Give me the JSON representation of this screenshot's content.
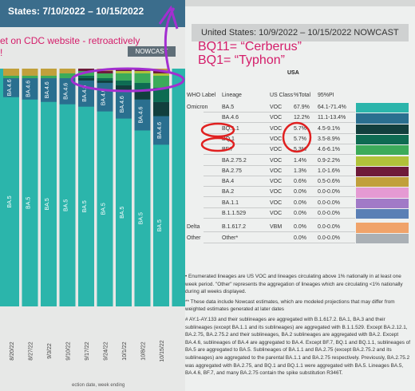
{
  "left": {
    "title": "States: 7/10/2022 – 10/15/2022",
    "note_line1": "et on CDC website - retroactively",
    "note_line2": "!",
    "nowcast_badge": "NOWCAST",
    "bottom_caption": "ection date, week ending"
  },
  "right": {
    "title": "United States: 10/9/2022 – 10/15/2022 NOWCAST",
    "usa": "USA",
    "headers": {
      "who": "WHO Label",
      "lineage": "Lineage",
      "usclass": "US Class",
      "total": "%Total",
      "pi": "95%PI"
    }
  },
  "annotations": {
    "cerberus": "BQ11= “Cerberus”",
    "typhon": "BQ1= “Typhon”"
  },
  "table": [
    {
      "who": "Omicron",
      "lineage": "BA.5",
      "class": "VOC",
      "total": "67.9%",
      "pi": "64.1-71.4%",
      "color": "#2bb5ab"
    },
    {
      "who": "",
      "lineage": "BA.4.6",
      "class": "VOC",
      "total": "12.2%",
      "pi": "11.1-13.4%",
      "color": "#2a6f8f"
    },
    {
      "who": "",
      "lineage": "BQ.1.1",
      "class": "VOC",
      "total": "5.7%",
      "pi": "4.5-9.1%",
      "color": "#123f3d"
    },
    {
      "who": "",
      "lineage": "BQ.1",
      "class": "VOC",
      "total": "5.7%",
      "pi": "3.5-8.9%",
      "color": "#0e6b52"
    },
    {
      "who": "",
      "lineage": "BF.7",
      "class": "VOC",
      "total": "5.3%",
      "pi": "4.6-6.1%",
      "color": "#3cab5a"
    },
    {
      "who": "",
      "lineage": "BA.2.75.2",
      "class": "VOC",
      "total": "1.4%",
      "pi": "0.9-2.2%",
      "color": "#b0c23a"
    },
    {
      "who": "",
      "lineage": "BA.2.75",
      "class": "VOC",
      "total": "1.3%",
      "pi": "1.0-1.6%",
      "color": "#6e1b3a"
    },
    {
      "who": "",
      "lineage": "BA.4",
      "class": "VOC",
      "total": "0.6%",
      "pi": "0.5-0.6%",
      "color": "#c1a03c"
    },
    {
      "who": "",
      "lineage": "BA.2",
      "class": "VOC",
      "total": "0.0%",
      "pi": "0.0-0.0%",
      "color": "#e59ad3"
    },
    {
      "who": "",
      "lineage": "BA.1.1",
      "class": "VOC",
      "total": "0.0%",
      "pi": "0.0-0.0%",
      "color": "#a17ac7"
    },
    {
      "who": "",
      "lineage": "B.1.1.529",
      "class": "VOC",
      "total": "0.0%",
      "pi": "0.0-0.0%",
      "color": "#5a7fb5"
    },
    {
      "who": "Delta",
      "lineage": "B.1.617.2",
      "class": "VBM",
      "total": "0.0%",
      "pi": "0.0-0.0%",
      "color": "#f0a36a"
    },
    {
      "who": "Other",
      "lineage": "Other*",
      "class": "",
      "total": "0.0%",
      "pi": "0.0-0.0%",
      "color": "#aab0b5"
    }
  ],
  "footnote": [
    "• Enumerated lineages are US VOC and lineages circulating above 1% nationally in at least one week period. \"Other\" represents the aggregation of lineages which are circulating <1% nationally during all weeks displayed.",
    "** These data include Nowcast estimates, which are modeled projections that may differ from weighted estimates generated at later dates",
    "# AY.1-AY.133 and their sublineages are aggregated with B.1.617.2. BA.1, BA.3 and their sublineages (except BA.1.1 and its sublineages) are aggregated with B.1.1.529. Except BA.2.12.1, BA.2.75, BA.2.75.2 and their sublineages, BA.2 sublineages are aggregated with BA.2. Except BA.4.6, sublineages of BA.4 are aggregated to BA.4. Except BF.7, BQ.1 and BQ.1.1, sublineages of BA.5 are aggregated to BA.5. Sublineages of BA.1.1 and BA.2.75 (except BA.2.75.2 and its sublineages) are aggregated to the parental BA.1.1 and BA.2.75 respectively. Previously, BA.2.75.2 was aggregated with BA.2.75, and BQ.1 and BQ.1.1 were aggregated with BA.5. Lineages BA.5, BA.4.6, BF.7, and many BA.2.75 contain the spike substitution R346T."
  ],
  "chart_data": {
    "type": "bar",
    "title": "",
    "xlabel": "",
    "ylabel": "",
    "categories": [
      "8/20/22",
      "8/27/22",
      "9/3/22",
      "9/10/22",
      "9/17/22",
      "9/24/22",
      "10/1/22",
      "10/8/22",
      "10/15/22"
    ],
    "series": [
      {
        "values": [
          88,
          87,
          86,
          85,
          84,
          82,
          79,
          74,
          68
        ],
        "color": "#2bb5ab",
        "labels": [
          "BA.5",
          "BA.5",
          "BA.5",
          "BA.5",
          "BA.5",
          "BA.5",
          "BA.5",
          "BA.5",
          "BA.5"
        ]
      },
      {
        "values": [
          8,
          9,
          10,
          11,
          11,
          12,
          12,
          13,
          12
        ],
        "color": "#2a6f8f",
        "labels": [
          "BA.4.6",
          "BA.4.6",
          "BA.4.6",
          "BA.4.6",
          "BA.4.6",
          "BA.4.6",
          "BA.4.6",
          "BA.4.6",
          "BA.4.6"
        ]
      },
      {
        "values": [
          0,
          0,
          0,
          0,
          1,
          1,
          2,
          4,
          6
        ],
        "color": "#123f3d"
      },
      {
        "values": [
          0,
          0,
          0,
          0,
          1,
          1,
          2,
          3,
          6
        ],
        "color": "#0e6b52"
      },
      {
        "values": [
          1,
          1,
          1,
          2,
          2,
          2,
          3,
          4,
          5
        ],
        "color": "#3cab5a"
      },
      {
        "values": [
          0,
          0,
          0,
          0,
          0,
          0,
          1,
          1,
          1
        ],
        "color": "#b0c23a"
      },
      {
        "values": [
          0,
          0,
          0,
          0,
          1,
          1,
          1,
          1,
          1
        ],
        "color": "#6e1b3a"
      },
      {
        "values": [
          3,
          3,
          3,
          2,
          0,
          1,
          0,
          0,
          1
        ],
        "color": "#c1a03c"
      }
    ],
    "ylim": [
      0,
      100
    ]
  }
}
